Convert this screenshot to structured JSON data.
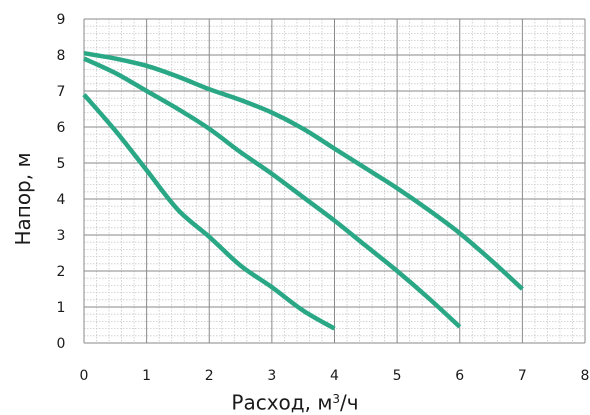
{
  "chart_data": {
    "type": "line",
    "title": "",
    "xlabel": {
      "pre": "Расход, м",
      "sup": "3",
      "post": "/ч"
    },
    "ylabel": "Напор, м",
    "xlim": [
      0,
      8
    ],
    "ylim": [
      0,
      9
    ],
    "x_ticks": [
      "0",
      "1",
      "2",
      "3",
      "4",
      "5",
      "6",
      "7",
      "8"
    ],
    "y_ticks": [
      "0",
      "1",
      "2",
      "3",
      "4",
      "5",
      "6",
      "7",
      "8",
      "9"
    ],
    "grid": {
      "major": true,
      "minor": true,
      "minor_divisions": 5
    },
    "line_color": "#2aa886",
    "series": [
      {
        "x": [
          0,
          0.5,
          1,
          1.5,
          2,
          2.5,
          3,
          3.5,
          4
        ],
        "y": [
          6.9,
          5.9,
          4.8,
          3.7,
          2.95,
          2.15,
          1.55,
          0.9,
          0.4
        ]
      },
      {
        "x": [
          0,
          0.5,
          1,
          1.5,
          2,
          2.5,
          3,
          3.5,
          4,
          4.5,
          5,
          5.5,
          6
        ],
        "y": [
          7.9,
          7.5,
          7.0,
          6.5,
          5.95,
          5.3,
          4.7,
          4.05,
          3.4,
          2.7,
          2.0,
          1.25,
          0.45
        ]
      },
      {
        "x": [
          0,
          0.5,
          1,
          1.5,
          2,
          2.5,
          3,
          3.5,
          4,
          4.5,
          5,
          5.5,
          6,
          6.5,
          7
        ],
        "y": [
          8.05,
          7.9,
          7.7,
          7.4,
          7.05,
          6.75,
          6.4,
          5.95,
          5.4,
          4.85,
          4.3,
          3.7,
          3.05,
          2.3,
          1.5
        ]
      }
    ]
  }
}
